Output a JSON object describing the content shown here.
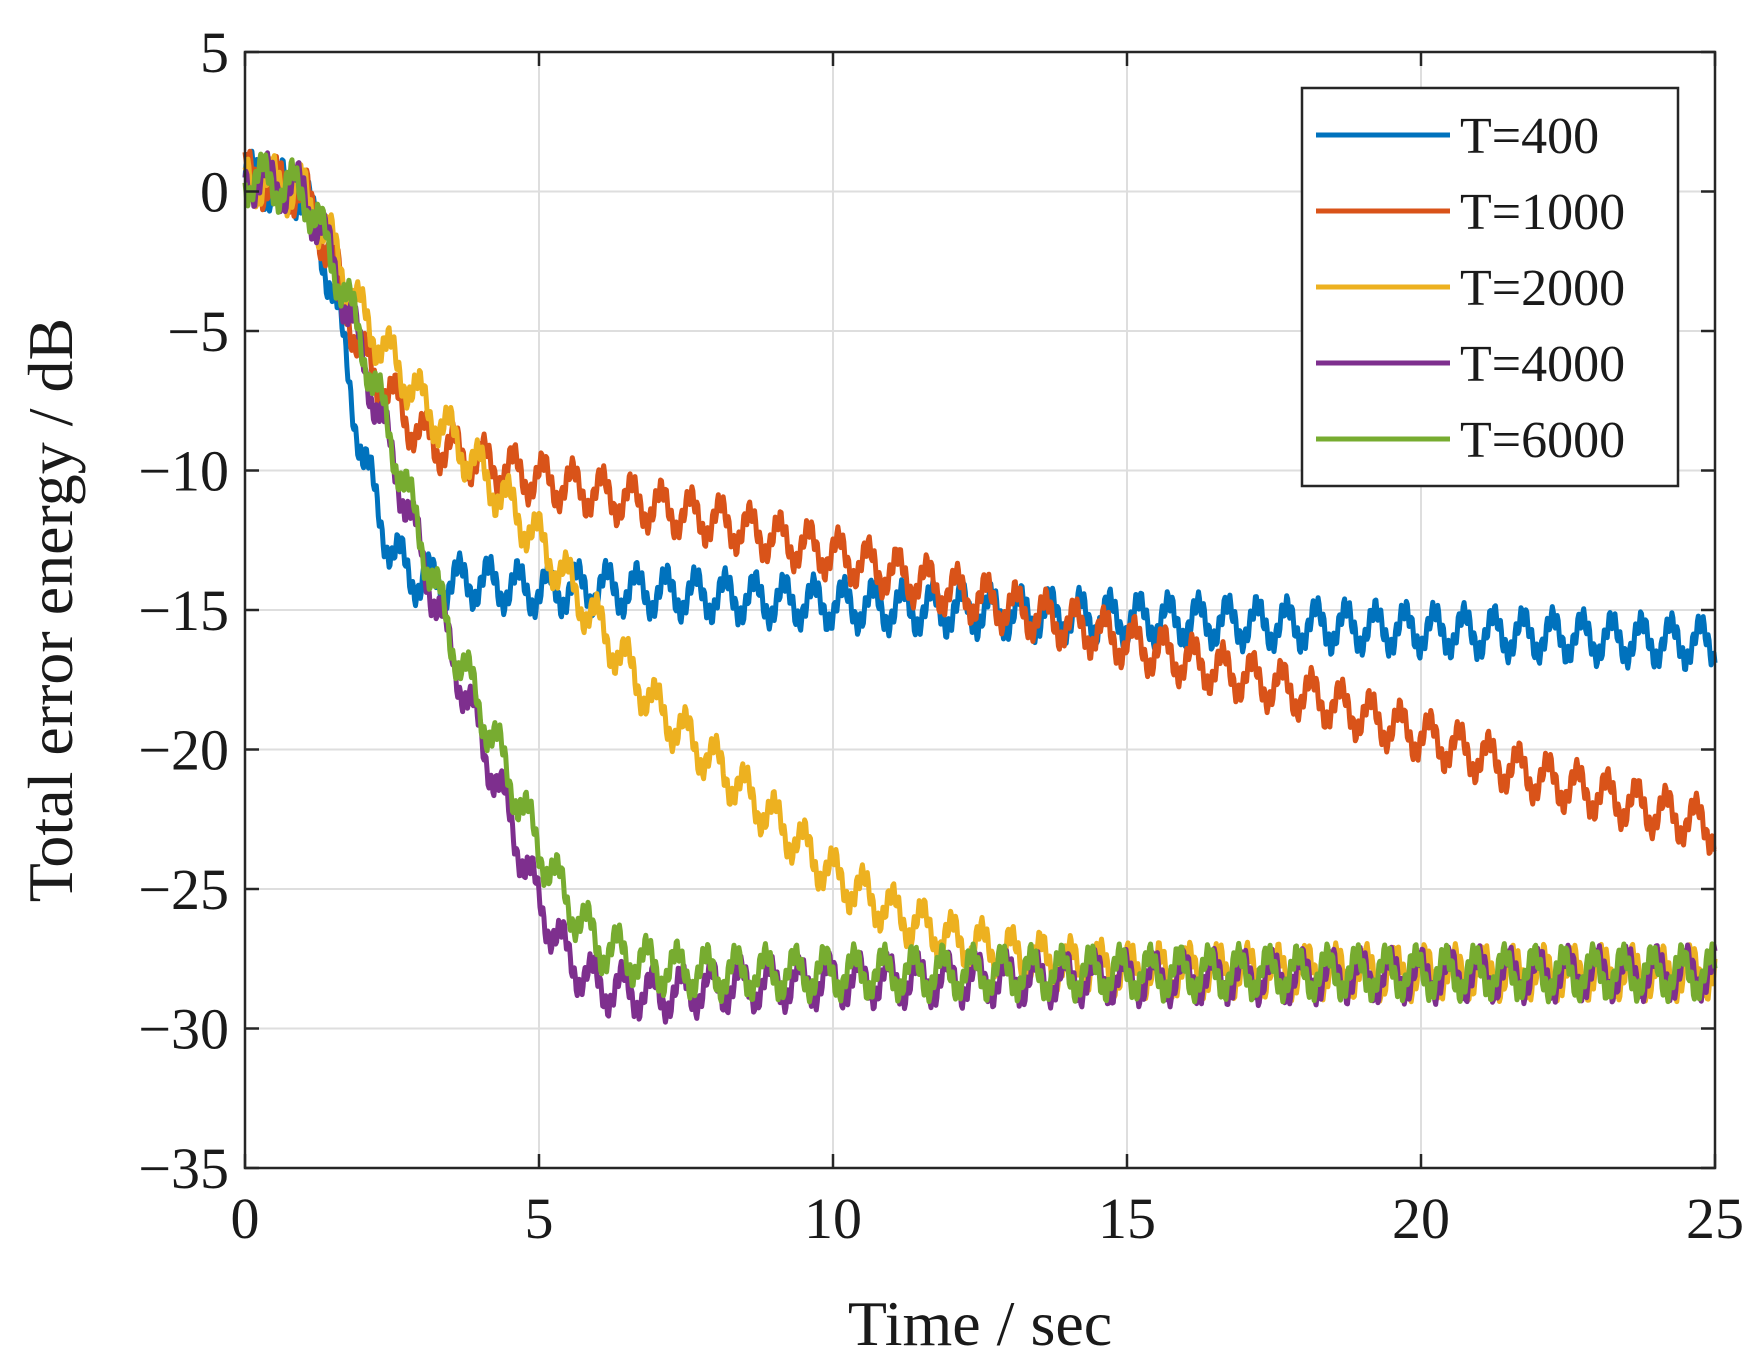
{
  "chart_data": {
    "type": "line",
    "title": "",
    "xlabel": "Time / sec",
    "ylabel": "Total error energy / dB",
    "xlim": [
      0,
      25
    ],
    "ylim": [
      -35,
      5
    ],
    "xticks": [
      0,
      5,
      10,
      15,
      20,
      25
    ],
    "yticks": [
      5,
      0,
      -5,
      -10,
      -15,
      -20,
      -25,
      -30,
      -35
    ],
    "xtick_labels": [
      "0",
      "5",
      "10",
      "15",
      "20",
      "25"
    ],
    "ytick_labels": [
      "5",
      "0",
      "−5",
      "−10",
      "−15",
      "−20",
      "−25",
      "−30",
      "−35"
    ],
    "grid": true,
    "legend_position": "top-right",
    "series": [
      {
        "name": "T=400",
        "color": "#0072BD",
        "x": [
          0,
          0.5,
          1.0,
          1.5,
          2.0,
          2.5,
          3.0,
          3.5,
          4.0,
          5.0,
          6.0,
          8.0,
          10.0,
          12.0,
          15.0,
          20.0,
          25.0
        ],
        "values": [
          0.5,
          0.2,
          0.0,
          -3.5,
          -9.5,
          -13.0,
          -14.0,
          -14.0,
          -14.0,
          -14.3,
          -14.2,
          -14.5,
          -14.8,
          -15.0,
          -15.3,
          -15.7,
          -16.2
        ]
      },
      {
        "name": "T=1000",
        "color": "#D95319",
        "x": [
          0,
          0.5,
          1.0,
          1.5,
          2.0,
          3.0,
          4.0,
          5.0,
          6.0,
          7.0,
          8.0,
          10.0,
          12.0,
          14.0,
          16.0,
          18.0,
          20.0,
          22.0,
          24.0,
          25.0
        ],
        "values": [
          0.5,
          0.3,
          0.0,
          -2.5,
          -6.0,
          -8.8,
          -9.7,
          -10.3,
          -10.8,
          -11.3,
          -11.8,
          -13.0,
          -14.3,
          -15.5,
          -16.8,
          -18.0,
          -19.5,
          -21.0,
          -22.2,
          -22.8
        ]
      },
      {
        "name": "T=2000",
        "color": "#EDB120",
        "x": [
          0,
          0.5,
          1.0,
          1.5,
          2.0,
          3.0,
          4.0,
          5.0,
          6.0,
          7.0,
          8.0,
          9.0,
          10.0,
          11.0,
          12.0,
          13.0,
          14.0,
          15.0,
          20.0,
          25.0
        ],
        "values": [
          0.5,
          0.3,
          0.0,
          -2.0,
          -4.5,
          -7.5,
          -10.0,
          -12.5,
          -15.5,
          -18.5,
          -20.5,
          -22.5,
          -24.5,
          -25.8,
          -26.8,
          -27.3,
          -27.7,
          -27.9,
          -28.0,
          -28.0
        ]
      },
      {
        "name": "T=4000",
        "color": "#7E2F8E",
        "x": [
          0,
          0.5,
          1.0,
          1.5,
          2.0,
          2.5,
          3.0,
          3.5,
          4.0,
          4.5,
          5.0,
          5.5,
          6.0,
          7.0,
          8.0,
          10.0,
          15.0,
          20.0,
          25.0
        ],
        "values": [
          0.5,
          0.3,
          0.0,
          -2.5,
          -6.0,
          -9.5,
          -13.0,
          -16.5,
          -19.5,
          -22.5,
          -25.5,
          -27.5,
          -28.5,
          -28.8,
          -28.5,
          -28.3,
          -28.2,
          -28.1,
          -28.0
        ]
      },
      {
        "name": "T=6000",
        "color": "#77AC30",
        "x": [
          0,
          0.5,
          1.0,
          1.5,
          2.0,
          2.5,
          3.0,
          3.5,
          4.0,
          4.5,
          5.0,
          5.5,
          6.0,
          7.0,
          8.0,
          10.0,
          15.0,
          20.0,
          25.0
        ],
        "values": [
          0.5,
          0.3,
          0.0,
          -2.5,
          -5.5,
          -9.0,
          -12.5,
          -16.0,
          -18.5,
          -21.0,
          -23.5,
          -25.5,
          -27.0,
          -27.8,
          -28.0,
          -28.0,
          -28.0,
          -28.0,
          -28.0
        ]
      }
    ]
  }
}
